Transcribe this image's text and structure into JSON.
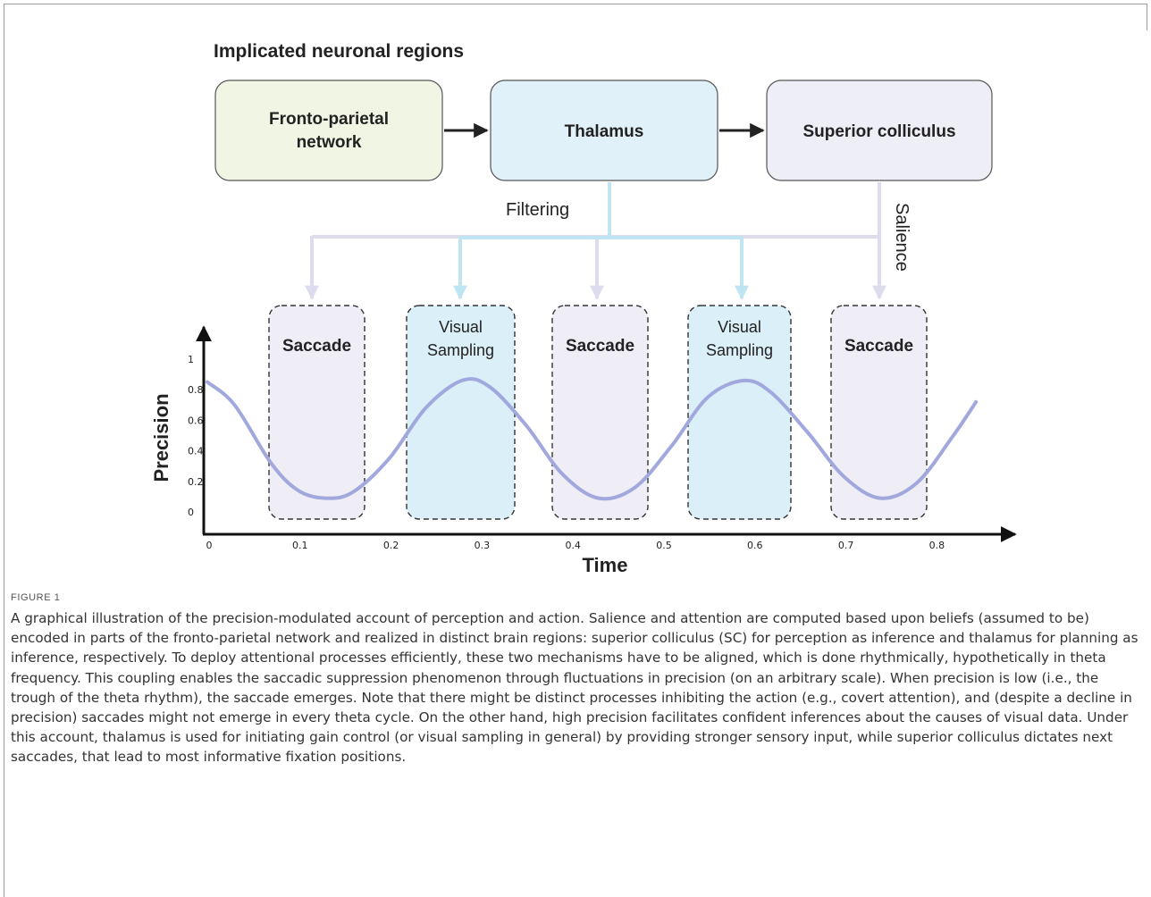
{
  "figure": {
    "heading": "Implicated neuronal regions",
    "nodes": {
      "fronto_parietal": "Fronto-parietal network",
      "thalamus": "Thalamus",
      "superior_colliculus": "Superior colliculus"
    },
    "edge_labels": {
      "filtering": "Filtering",
      "salience": "Salience"
    },
    "windows": [
      {
        "label": "Saccade",
        "kind": "saccade"
      },
      {
        "label": "Visual Sampling",
        "kind": "sampling"
      },
      {
        "label": "Saccade",
        "kind": "saccade"
      },
      {
        "label": "Visual Sampling",
        "kind": "sampling"
      },
      {
        "label": "Saccade",
        "kind": "saccade"
      }
    ],
    "colors": {
      "fronto_parietal_fill": "#f1f6e4",
      "thalamus_fill": "#e1f1f9",
      "sc_fill": "#eeeef7",
      "saccade_fill": "#efedf5",
      "sampling_fill": "#dbeff8",
      "filtering_line": "#bfe4f2",
      "salience_line": "#dcdcee",
      "curve": "#a1a8dd"
    }
  },
  "chart_data": {
    "type": "line",
    "xlabel": "Time",
    "ylabel": "Precision",
    "xlim": [
      0,
      0.88
    ],
    "ylim": [
      0,
      1.12
    ],
    "x_ticks": [
      "0",
      "0.1",
      "0.2",
      "0.3",
      "0.4",
      "0.5",
      "0.6",
      "0.7",
      "0.8"
    ],
    "y_ticks": [
      "0",
      "0.2",
      "0.4",
      "0.6",
      "0.8",
      "1"
    ],
    "series": [
      {
        "x": [
          0,
          0.03,
          0.07,
          0.1,
          0.13,
          0.16,
          0.2,
          0.24,
          0.28,
          0.31,
          0.35,
          0.39,
          0.43,
          0.47,
          0.51,
          0.55,
          0.59,
          0.62,
          0.66,
          0.7,
          0.74,
          0.78,
          0.82,
          0.845
        ],
        "y": [
          0.85,
          0.7,
          0.32,
          0.14,
          0.09,
          0.13,
          0.35,
          0.68,
          0.86,
          0.82,
          0.57,
          0.25,
          0.09,
          0.16,
          0.43,
          0.75,
          0.86,
          0.78,
          0.52,
          0.23,
          0.09,
          0.19,
          0.5,
          0.72
        ]
      }
    ]
  },
  "caption": {
    "figure_label": "FIGURE 1",
    "text": "A graphical illustration of the precision-modulated account of perception and action. Salience and attention are computed based upon beliefs (assumed to be) encoded in parts of the fronto-parietal network and realized in distinct brain regions: superior colliculus (SC) for perception as inference and thalamus for planning as inference, respectively. To deploy attentional processes efficiently, these two mechanisms have to be aligned, which is done rhythmically, hypothetically in theta frequency. This coupling enables the saccadic suppression phenomenon through fluctuations in precision (on an arbitrary scale). When precision is low (i.e., the trough of the theta rhythm), the saccade emerges. Note that there might be distinct processes inhibiting the action (e.g., covert attention), and (despite a decline in precision) saccades might not emerge in every theta cycle. On the other hand, high precision facilitates confident inferences about the causes of visual data. Under this account, thalamus is used for initiating gain control (or visual sampling in general) by providing stronger sensory input, while superior colliculus dictates next saccades, that lead to most informative fixation positions."
  }
}
